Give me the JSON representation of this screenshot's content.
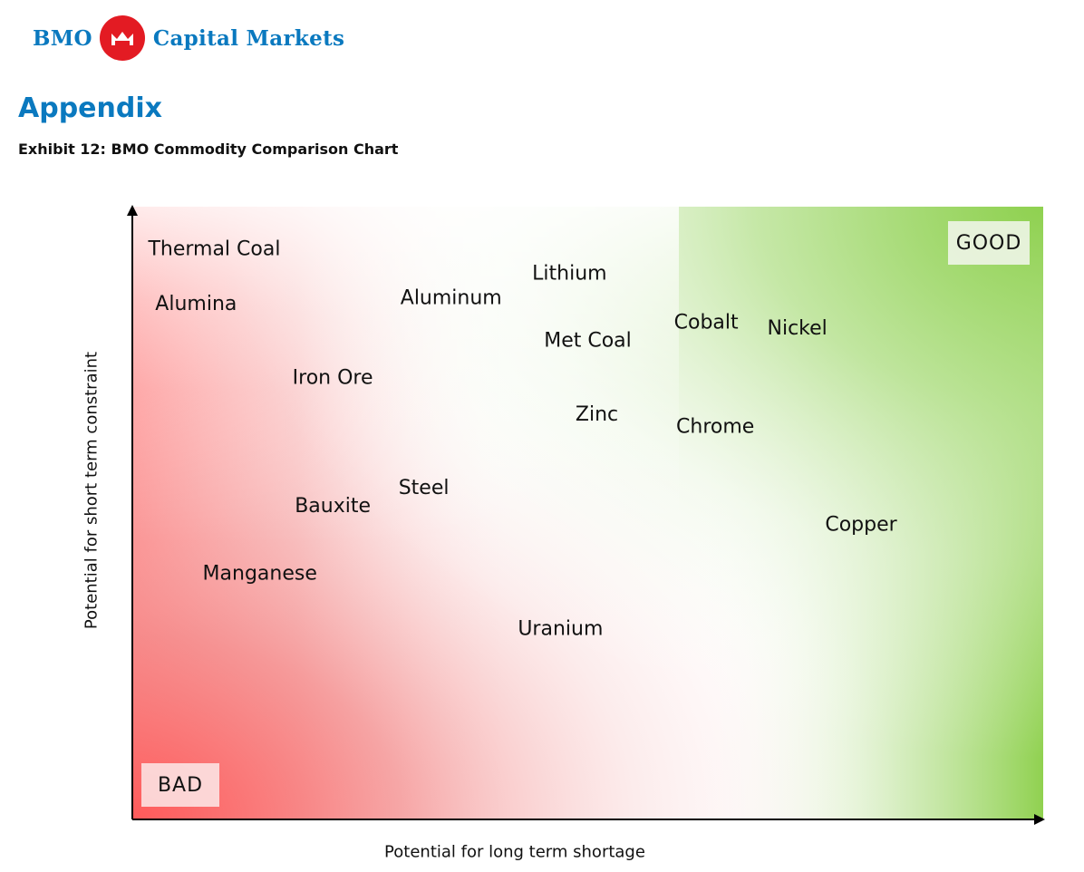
{
  "header": {
    "brand_left": "BMO",
    "brand_right": "Capital Markets",
    "brand_color": "#0a79bf",
    "roundel_color": "#e31b23",
    "logo_icon": "bmo-roundel-icon"
  },
  "section_title": "Appendix",
  "exhibit_title": "Exhibit 12:  BMO Commodity Comparison Chart",
  "chart_data": {
    "type": "scatter",
    "title": "",
    "xlabel": "Potential for long term shortage",
    "ylabel": "Potential for short term constraint",
    "xlim": [
      0,
      100
    ],
    "ylim": [
      0,
      100
    ],
    "grid": false,
    "axis_ticks": false,
    "background": "gradient from red (bottom-left) through white to green (top-right)",
    "colors": {
      "bad": "#ff5a5a",
      "good": "#8fd150"
    },
    "corner_labels": {
      "bad": "BAD",
      "good": "GOOD"
    },
    "points": [
      {
        "label": "Thermal Coal",
        "x": 9,
        "y": 93
      },
      {
        "label": "Alumina",
        "x": 7,
        "y": 84
      },
      {
        "label": "Aluminum",
        "x": 35,
        "y": 85
      },
      {
        "label": "Lithium",
        "x": 48,
        "y": 89
      },
      {
        "label": "Met Coal",
        "x": 50,
        "y": 78
      },
      {
        "label": "Cobalt",
        "x": 63,
        "y": 81
      },
      {
        "label": "Nickel",
        "x": 73,
        "y": 80
      },
      {
        "label": "Iron Ore",
        "x": 22,
        "y": 72
      },
      {
        "label": "Zinc",
        "x": 51,
        "y": 66
      },
      {
        "label": "Chrome",
        "x": 64,
        "y": 64
      },
      {
        "label": "Steel",
        "x": 32,
        "y": 54
      },
      {
        "label": "Bauxite",
        "x": 22,
        "y": 51
      },
      {
        "label": "Copper",
        "x": 80,
        "y": 48
      },
      {
        "label": "Manganese",
        "x": 14,
        "y": 40
      },
      {
        "label": "Uranium",
        "x": 47,
        "y": 31
      }
    ]
  }
}
